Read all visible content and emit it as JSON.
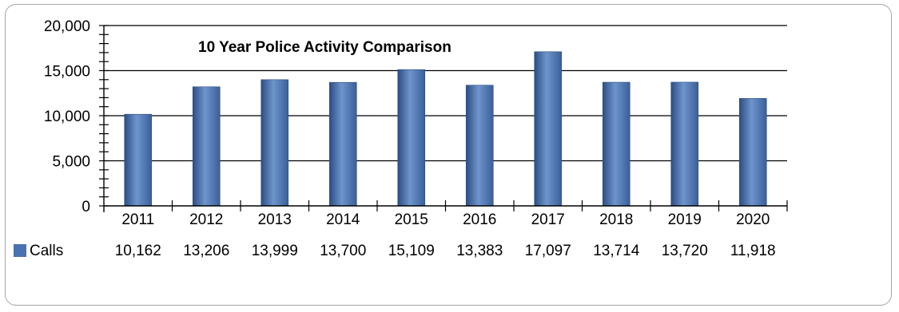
{
  "chart_data": {
    "type": "bar",
    "title": "10 Year Police Activity Comparison",
    "categories": [
      "2011",
      "2012",
      "2013",
      "2014",
      "2015",
      "2016",
      "2017",
      "2018",
      "2019",
      "2020"
    ],
    "series": [
      {
        "name": "Calls",
        "values": [
          10162,
          13206,
          13999,
          13700,
          15109,
          13383,
          17097,
          13714,
          13720,
          11918
        ],
        "value_labels": [
          "10,162",
          "13,206",
          "13,999",
          "13,700",
          "15,109",
          "13,383",
          "17,097",
          "13,714",
          "13,720",
          "11,918"
        ]
      }
    ],
    "ylim": [
      0,
      20000
    ],
    "y_ticks": [
      0,
      5000,
      10000,
      15000,
      20000
    ],
    "y_tick_labels": [
      "0",
      "5,000",
      "10,000",
      "15,000",
      "20,000"
    ],
    "grid": true,
    "legend": "data-table-bottom",
    "colors": {
      "bar": "#4a72b0",
      "bar_dark": "#2c4d83",
      "bar_light": "#6e95cc",
      "grid": "#000000"
    }
  }
}
